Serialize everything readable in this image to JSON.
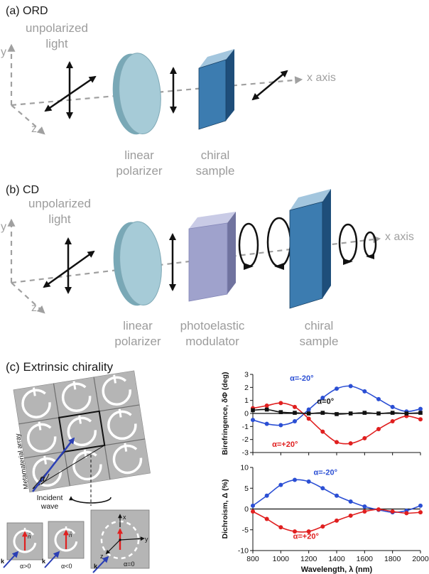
{
  "panel_a": {
    "title": "(a) ORD",
    "light_label_1": "unpolarized",
    "light_label_2": "light",
    "y_axis": "y",
    "z_axis": "z",
    "x_axis": "x axis",
    "polarizer_1": "linear",
    "polarizer_2": "polarizer",
    "sample_1": "chiral",
    "sample_2": "sample"
  },
  "panel_b": {
    "title": "(b) CD",
    "light_label_1": "unpolarized",
    "light_label_2": "light",
    "y_axis": "y",
    "z_axis": "z",
    "x_axis": "x axis",
    "polarizer_1": "linear",
    "polarizer_2": "polarizer",
    "modulator_1": "photoelastic",
    "modulator_2": "modulator",
    "sample_1": "chiral",
    "sample_2": "sample"
  },
  "panel_c": {
    "title": "(c) Extrinsic chirality",
    "array_label": "Metamaterial array",
    "alpha": "α",
    "incident_1": "Incident",
    "incident_2": "wave",
    "cell_n": "n̂",
    "cell1_k": "k",
    "cell1_angle": "α>0",
    "cell2_k": "k",
    "cell2_angle": "α<0",
    "cell3_k": "k",
    "cell3_angle": "α=0",
    "axis_x": "x",
    "axis_y": "y",
    "axis_z": "z"
  },
  "colors": {
    "gray_text": "#9c9c9c",
    "axis_gray": "#a0a0a0",
    "blue_series": "#2b4fd4",
    "red_series": "#e01f1f",
    "black_series": "#111111",
    "sample_blue": "#3c7cb0",
    "polarizer_teal": "#a6cbd7",
    "modulator_lavender": "#9fa2cc"
  },
  "chart_data": [
    {
      "type": "line",
      "title": "",
      "xlabel": "",
      "ylabel": "Birefringence, δΦ (deg)",
      "xlim": [
        800,
        2000
      ],
      "ylim": [
        -3,
        3
      ],
      "xticks": [
        800,
        1000,
        1200,
        1400,
        1600,
        1800,
        2000
      ],
      "yticks": [
        3,
        2,
        1,
        0,
        -1,
        -2,
        -3
      ],
      "show_x_tick_labels": false,
      "legend_position": "none",
      "grid": false,
      "x": [
        800,
        900,
        1000,
        1100,
        1200,
        1300,
        1400,
        1500,
        1600,
        1700,
        1800,
        1900,
        2000
      ],
      "series": [
        {
          "name": "α=-20°",
          "color": "#2b4fd4",
          "marker": "circle",
          "values": [
            -0.5,
            -0.8,
            -0.9,
            -0.6,
            0.3,
            1.2,
            1.9,
            2.1,
            1.7,
            1.1,
            0.5,
            0.15,
            0.35
          ]
        },
        {
          "name": "α=+20°",
          "color": "#e01f1f",
          "marker": "circle",
          "values": [
            0.4,
            0.6,
            0.8,
            0.5,
            -0.4,
            -1.4,
            -2.2,
            -2.3,
            -1.9,
            -1.2,
            -0.6,
            -0.2,
            -0.45
          ]
        },
        {
          "name": "α=0°",
          "color": "#111111",
          "marker": "square",
          "values": [
            0.25,
            0.3,
            0.1,
            0.05,
            0,
            0.05,
            -0.05,
            0,
            0.05,
            0,
            0.05,
            0,
            0.05
          ]
        }
      ],
      "annotations": [
        {
          "text": "α=-20°",
          "x": 1150,
          "y": 2.5,
          "color": "#2b4fd4"
        },
        {
          "text": "α=0°",
          "x": 1320,
          "y": 0.75,
          "color": "#111111"
        },
        {
          "text": "α=+20°",
          "x": 1030,
          "y": -2.55,
          "color": "#e01f1f"
        }
      ]
    },
    {
      "type": "line",
      "title": "",
      "xlabel": "Wavelength, λ (nm)",
      "ylabel": "Dichroism, Δ (%)",
      "xlim": [
        800,
        2000
      ],
      "ylim": [
        -10,
        10
      ],
      "xticks": [
        800,
        1000,
        1200,
        1400,
        1600,
        1800,
        2000
      ],
      "yticks": [
        10,
        5,
        0,
        -5,
        -10
      ],
      "show_x_tick_labels": true,
      "legend_position": "none",
      "grid": false,
      "x": [
        800,
        900,
        1000,
        1100,
        1200,
        1300,
        1400,
        1500,
        1600,
        1700,
        1800,
        1900,
        2000
      ],
      "series": [
        {
          "name": "α=-20°",
          "color": "#2b4fd4",
          "marker": "circle",
          "values": [
            0.8,
            3.2,
            5.8,
            7.0,
            6.6,
            5.0,
            3.2,
            1.8,
            0.6,
            -0.2,
            -0.8,
            -0.4,
            0.8
          ]
        },
        {
          "name": "α=+20°",
          "color": "#e01f1f",
          "marker": "circle",
          "values": [
            -0.6,
            -2.4,
            -4.4,
            -5.4,
            -5.4,
            -4.2,
            -2.8,
            -1.6,
            -0.6,
            -0.1,
            -0.6,
            -1.0,
            -0.8
          ]
        }
      ],
      "annotations": [
        {
          "text": "α=-20°",
          "x": 1320,
          "y": 8.2,
          "color": "#2b4fd4"
        },
        {
          "text": "α=+20°",
          "x": 1180,
          "y": -7.2,
          "color": "#e01f1f"
        }
      ]
    }
  ]
}
